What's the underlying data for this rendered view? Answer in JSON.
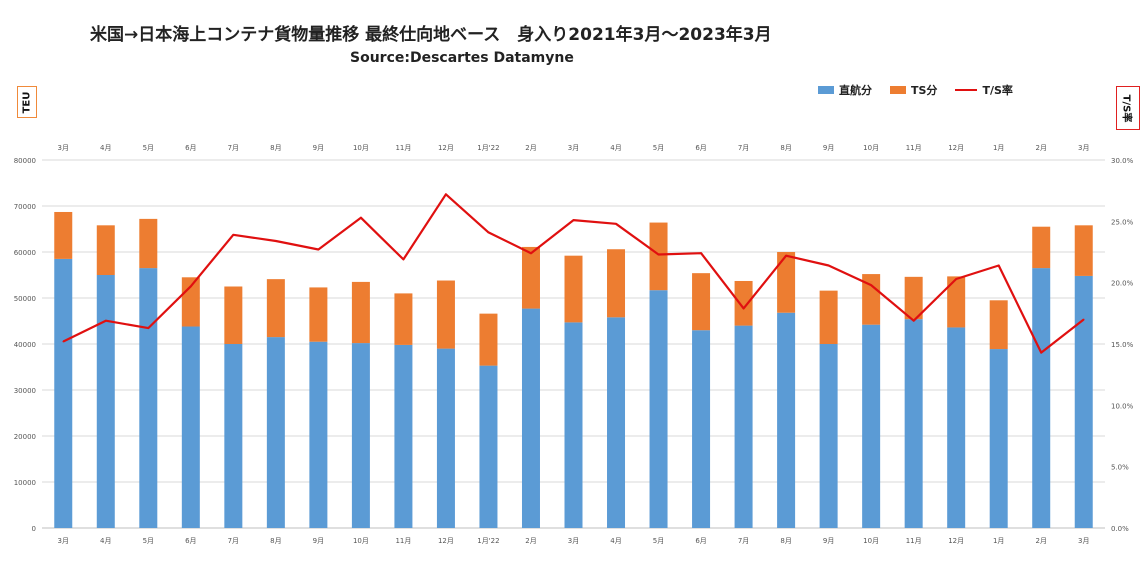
{
  "title": "米国→日本海上コンテナ貨物量推移  最終仕向地ベース　身入り2021年3月〜2023年3月",
  "subtitle": "Source:Descartes Datamyne",
  "y_left_label": "TEU",
  "y_right_label": "T/S率",
  "legend": [
    {
      "name": "直航分",
      "color": "#5b9bd5",
      "kind": "bar"
    },
    {
      "name": "TS分",
      "color": "#ed7d31",
      "kind": "bar"
    },
    {
      "name": "T/S率",
      "color": "#e01010",
      "kind": "line"
    }
  ],
  "chart_data": {
    "type": "bar",
    "stacked": true,
    "categories": [
      "3月",
      "4月",
      "5月",
      "6月",
      "7月",
      "8月",
      "9月",
      "10月",
      "11月",
      "12月",
      "1月'22",
      "2月",
      "3月",
      "4月",
      "5月",
      "6月",
      "7月",
      "8月",
      "9月",
      "10月",
      "11月",
      "12月",
      "1月",
      "2月",
      "3月"
    ],
    "series": [
      {
        "name": "直航分",
        "values": [
          58500,
          55000,
          56500,
          43800,
          40000,
          41500,
          40500,
          40200,
          39800,
          39000,
          35300,
          47700,
          44700,
          45800,
          51700,
          43000,
          44000,
          46800,
          40000,
          44200,
          45400,
          43600,
          38900,
          56500,
          54800
        ]
      },
      {
        "name": "TS分",
        "values": [
          10200,
          10800,
          10700,
          10700,
          12500,
          12600,
          11800,
          13300,
          11200,
          14800,
          11300,
          13400,
          14500,
          14800,
          14700,
          12400,
          9700,
          13200,
          11600,
          11000,
          9200,
          11100,
          10600,
          9000,
          11000
        ]
      },
      {
        "name": "T/S率",
        "axis": "right",
        "values": [
          15.2,
          16.9,
          16.3,
          19.7,
          23.9,
          23.4,
          22.7,
          25.3,
          21.9,
          27.2,
          24.1,
          22.4,
          25.1,
          24.8,
          22.3,
          22.4,
          17.9,
          22.2,
          21.4,
          19.8,
          16.9,
          20.3,
          21.4,
          14.3,
          17.0
        ]
      }
    ],
    "ylim": [
      0,
      80000
    ],
    "yticks": [
      "0",
      "10000",
      "20000",
      "30000",
      "40000",
      "50000",
      "60000",
      "70000",
      "80000"
    ],
    "y2lim": [
      0,
      30
    ],
    "y2ticks": [
      "0.0%",
      "5.0%",
      "10.0%",
      "15.0%",
      "20.0%",
      "25.0%",
      "30.0%"
    ],
    "grid": true,
    "legend_position": "top-right"
  }
}
